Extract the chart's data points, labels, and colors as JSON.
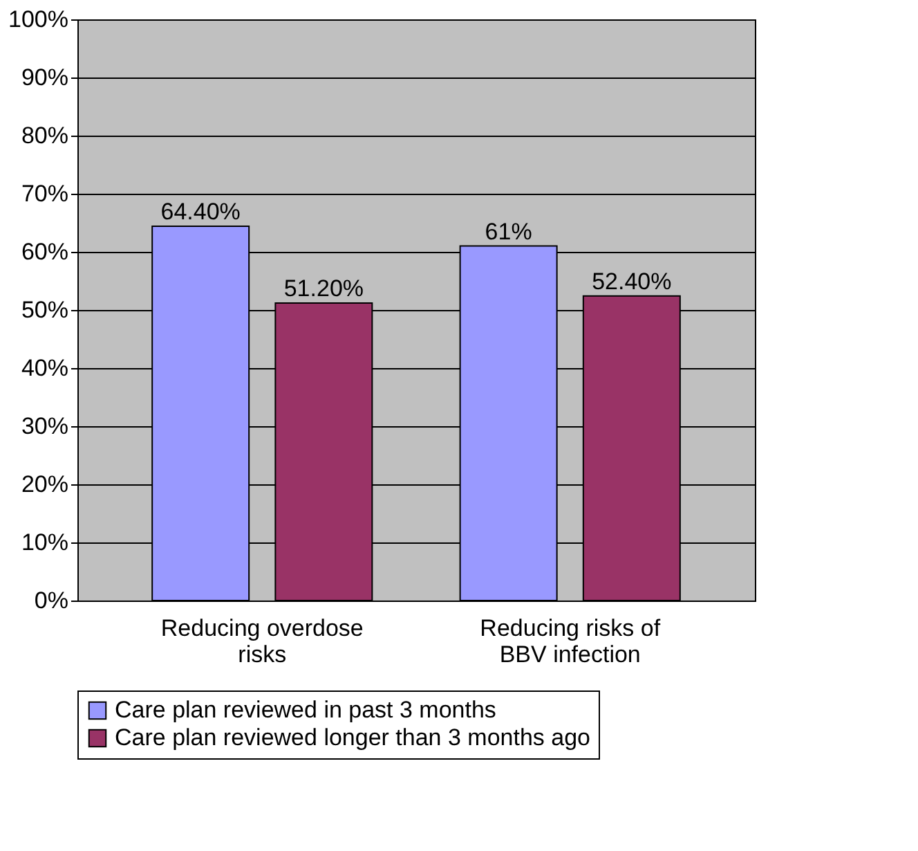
{
  "chart_data": {
    "type": "bar",
    "categories": [
      "Reducing overdose risks",
      "Reducing risks of BBV infection"
    ],
    "series": [
      {
        "name": "Care plan reviewed in past 3 months",
        "color": "#9999ff",
        "values": [
          64.4,
          61
        ],
        "value_labels": [
          "64.40%",
          "61%"
        ]
      },
      {
        "name": "Care plan reviewed longer than 3 months ago",
        "color": "#993366",
        "values": [
          51.2,
          52.4
        ],
        "value_labels": [
          "51.20%",
          "52.40%"
        ]
      }
    ],
    "ylim": [
      0,
      100
    ],
    "yticks": [
      {
        "value": 0,
        "label": "0%"
      },
      {
        "value": 10,
        "label": "10%"
      },
      {
        "value": 20,
        "label": "20%"
      },
      {
        "value": 30,
        "label": "30%"
      },
      {
        "value": 40,
        "label": "40%"
      },
      {
        "value": 50,
        "label": "50%"
      },
      {
        "value": 60,
        "label": "60%"
      },
      {
        "value": 70,
        "label": "70%"
      },
      {
        "value": 80,
        "label": "80%"
      },
      {
        "value": 90,
        "label": "90%"
      },
      {
        "value": 100,
        "label": "100%"
      }
    ],
    "grid": "y",
    "legend": "bottom"
  }
}
